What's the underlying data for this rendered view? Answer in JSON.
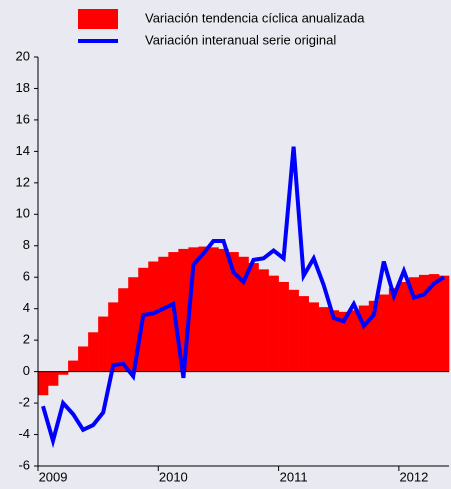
{
  "chart_data": {
    "type": "bar",
    "categories": [
      null,
      "2009",
      null,
      null,
      null,
      null,
      null,
      null,
      null,
      null,
      null,
      null,
      null,
      "2010",
      null,
      null,
      null,
      null,
      null,
      null,
      null,
      null,
      null,
      null,
      null,
      "2011",
      null,
      null,
      null,
      null,
      null,
      null,
      null,
      null,
      null,
      null,
      null,
      "2012",
      null,
      null,
      null
    ],
    "series": [
      {
        "name": "Variación tendencia cíclica anualizada",
        "type": "bar",
        "color": "#ff0000",
        "values": [
          -1.5,
          -0.9,
          -0.2,
          0.7,
          1.6,
          2.5,
          3.5,
          4.4,
          5.3,
          6.0,
          6.6,
          7.0,
          7.3,
          7.6,
          7.8,
          7.9,
          7.95,
          7.9,
          7.8,
          7.6,
          7.3,
          6.9,
          6.5,
          6.1,
          5.7,
          5.2,
          4.8,
          4.4,
          4.1,
          3.9,
          3.8,
          3.9,
          4.2,
          4.5,
          4.9,
          5.3,
          5.7,
          6.0,
          6.15,
          6.2,
          6.1
        ]
      },
      {
        "name": "Variación interanual serie original",
        "type": "line",
        "color": "#0000ff",
        "values": [
          -2.2,
          -4.4,
          -2.0,
          -2.7,
          -3.7,
          -3.4,
          -2.6,
          0.4,
          0.5,
          -0.3,
          3.6,
          3.7,
          4.0,
          4.3,
          -0.4,
          6.8,
          7.5,
          8.3,
          8.3,
          6.3,
          5.7,
          7.1,
          7.2,
          7.7,
          7.2,
          14.3,
          6.1,
          7.2,
          5.5,
          3.4,
          3.2,
          4.3,
          2.9,
          3.6,
          7.0,
          4.8,
          6.4,
          4.7,
          4.9,
          5.6,
          6.0
        ]
      }
    ],
    "ylim": [
      -6,
      20
    ],
    "yticks": [
      -6,
      -4,
      -2,
      0,
      2,
      4,
      6,
      8,
      10,
      12,
      14,
      16,
      18,
      20
    ],
    "grid": false
  }
}
